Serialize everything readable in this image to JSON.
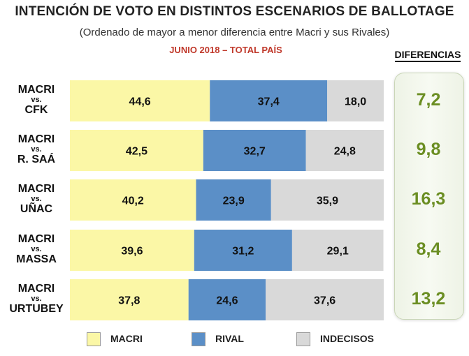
{
  "header": {
    "title": "INTENCIÓN DE VOTO EN DISTINTOS ESCENARIOS DE BALLOTAGE",
    "subtitle": "(Ordenado de mayor a menor diferencia entre Macri y sus Rivales)",
    "period": "JUNIO 2018 – TOTAL PAÍS",
    "diff_title": "DIFERENCIAS"
  },
  "rows": [
    {
      "a": "MACRI",
      "vs": "vs.",
      "b": "CFK",
      "diff": "7,2"
    },
    {
      "a": "MACRI",
      "vs": "vs.",
      "b": "R. SAÁ",
      "diff": "9,8"
    },
    {
      "a": "MACRI",
      "vs": "vs.",
      "b": "UÑAC",
      "diff": "16,3"
    },
    {
      "a": "MACRI",
      "vs": "vs.",
      "b": "MASSA",
      "diff": "8,4"
    },
    {
      "a": "MACRI",
      "vs": "vs.",
      "b": "URTUBEY",
      "diff": "13,2"
    }
  ],
  "legend": [
    {
      "label": "MACRI",
      "color": "#fbf7a6"
    },
    {
      "label": "RIVAL",
      "color": "#5b8fc7"
    },
    {
      "label": "INDECISOS",
      "color": "#d9d9d9"
    }
  ],
  "chart_data": {
    "type": "bar",
    "stacked": true,
    "orientation": "horizontal",
    "categories": [
      "MACRI vs. CFK",
      "MACRI vs. R. SAÁ",
      "MACRI vs. UÑAC",
      "MACRI vs. MASSA",
      "MACRI vs. URTUBEY"
    ],
    "series": [
      {
        "name": "MACRI",
        "color": "#fbf7a6",
        "values": [
          44.6,
          42.5,
          40.2,
          39.6,
          37.8
        ],
        "labels": [
          "44,6",
          "42,5",
          "40,2",
          "39,6",
          "37,8"
        ]
      },
      {
        "name": "RIVAL",
        "color": "#5b8fc7",
        "values": [
          37.4,
          32.7,
          23.9,
          31.2,
          24.6
        ],
        "labels": [
          "37,4",
          "32,7",
          "23,9",
          "31,2",
          "24,6"
        ]
      },
      {
        "name": "INDECISOS",
        "color": "#d9d9d9",
        "values": [
          18.0,
          24.8,
          35.9,
          29.1,
          37.6
        ],
        "labels": [
          "18,0",
          "24,8",
          "35,9",
          "29,1",
          "37,6"
        ]
      }
    ],
    "differences": [
      "7,2",
      "9,8",
      "16,3",
      "8,4",
      "13,2"
    ],
    "xlim": [
      0,
      100
    ],
    "grid": false,
    "legend_position": "bottom"
  }
}
